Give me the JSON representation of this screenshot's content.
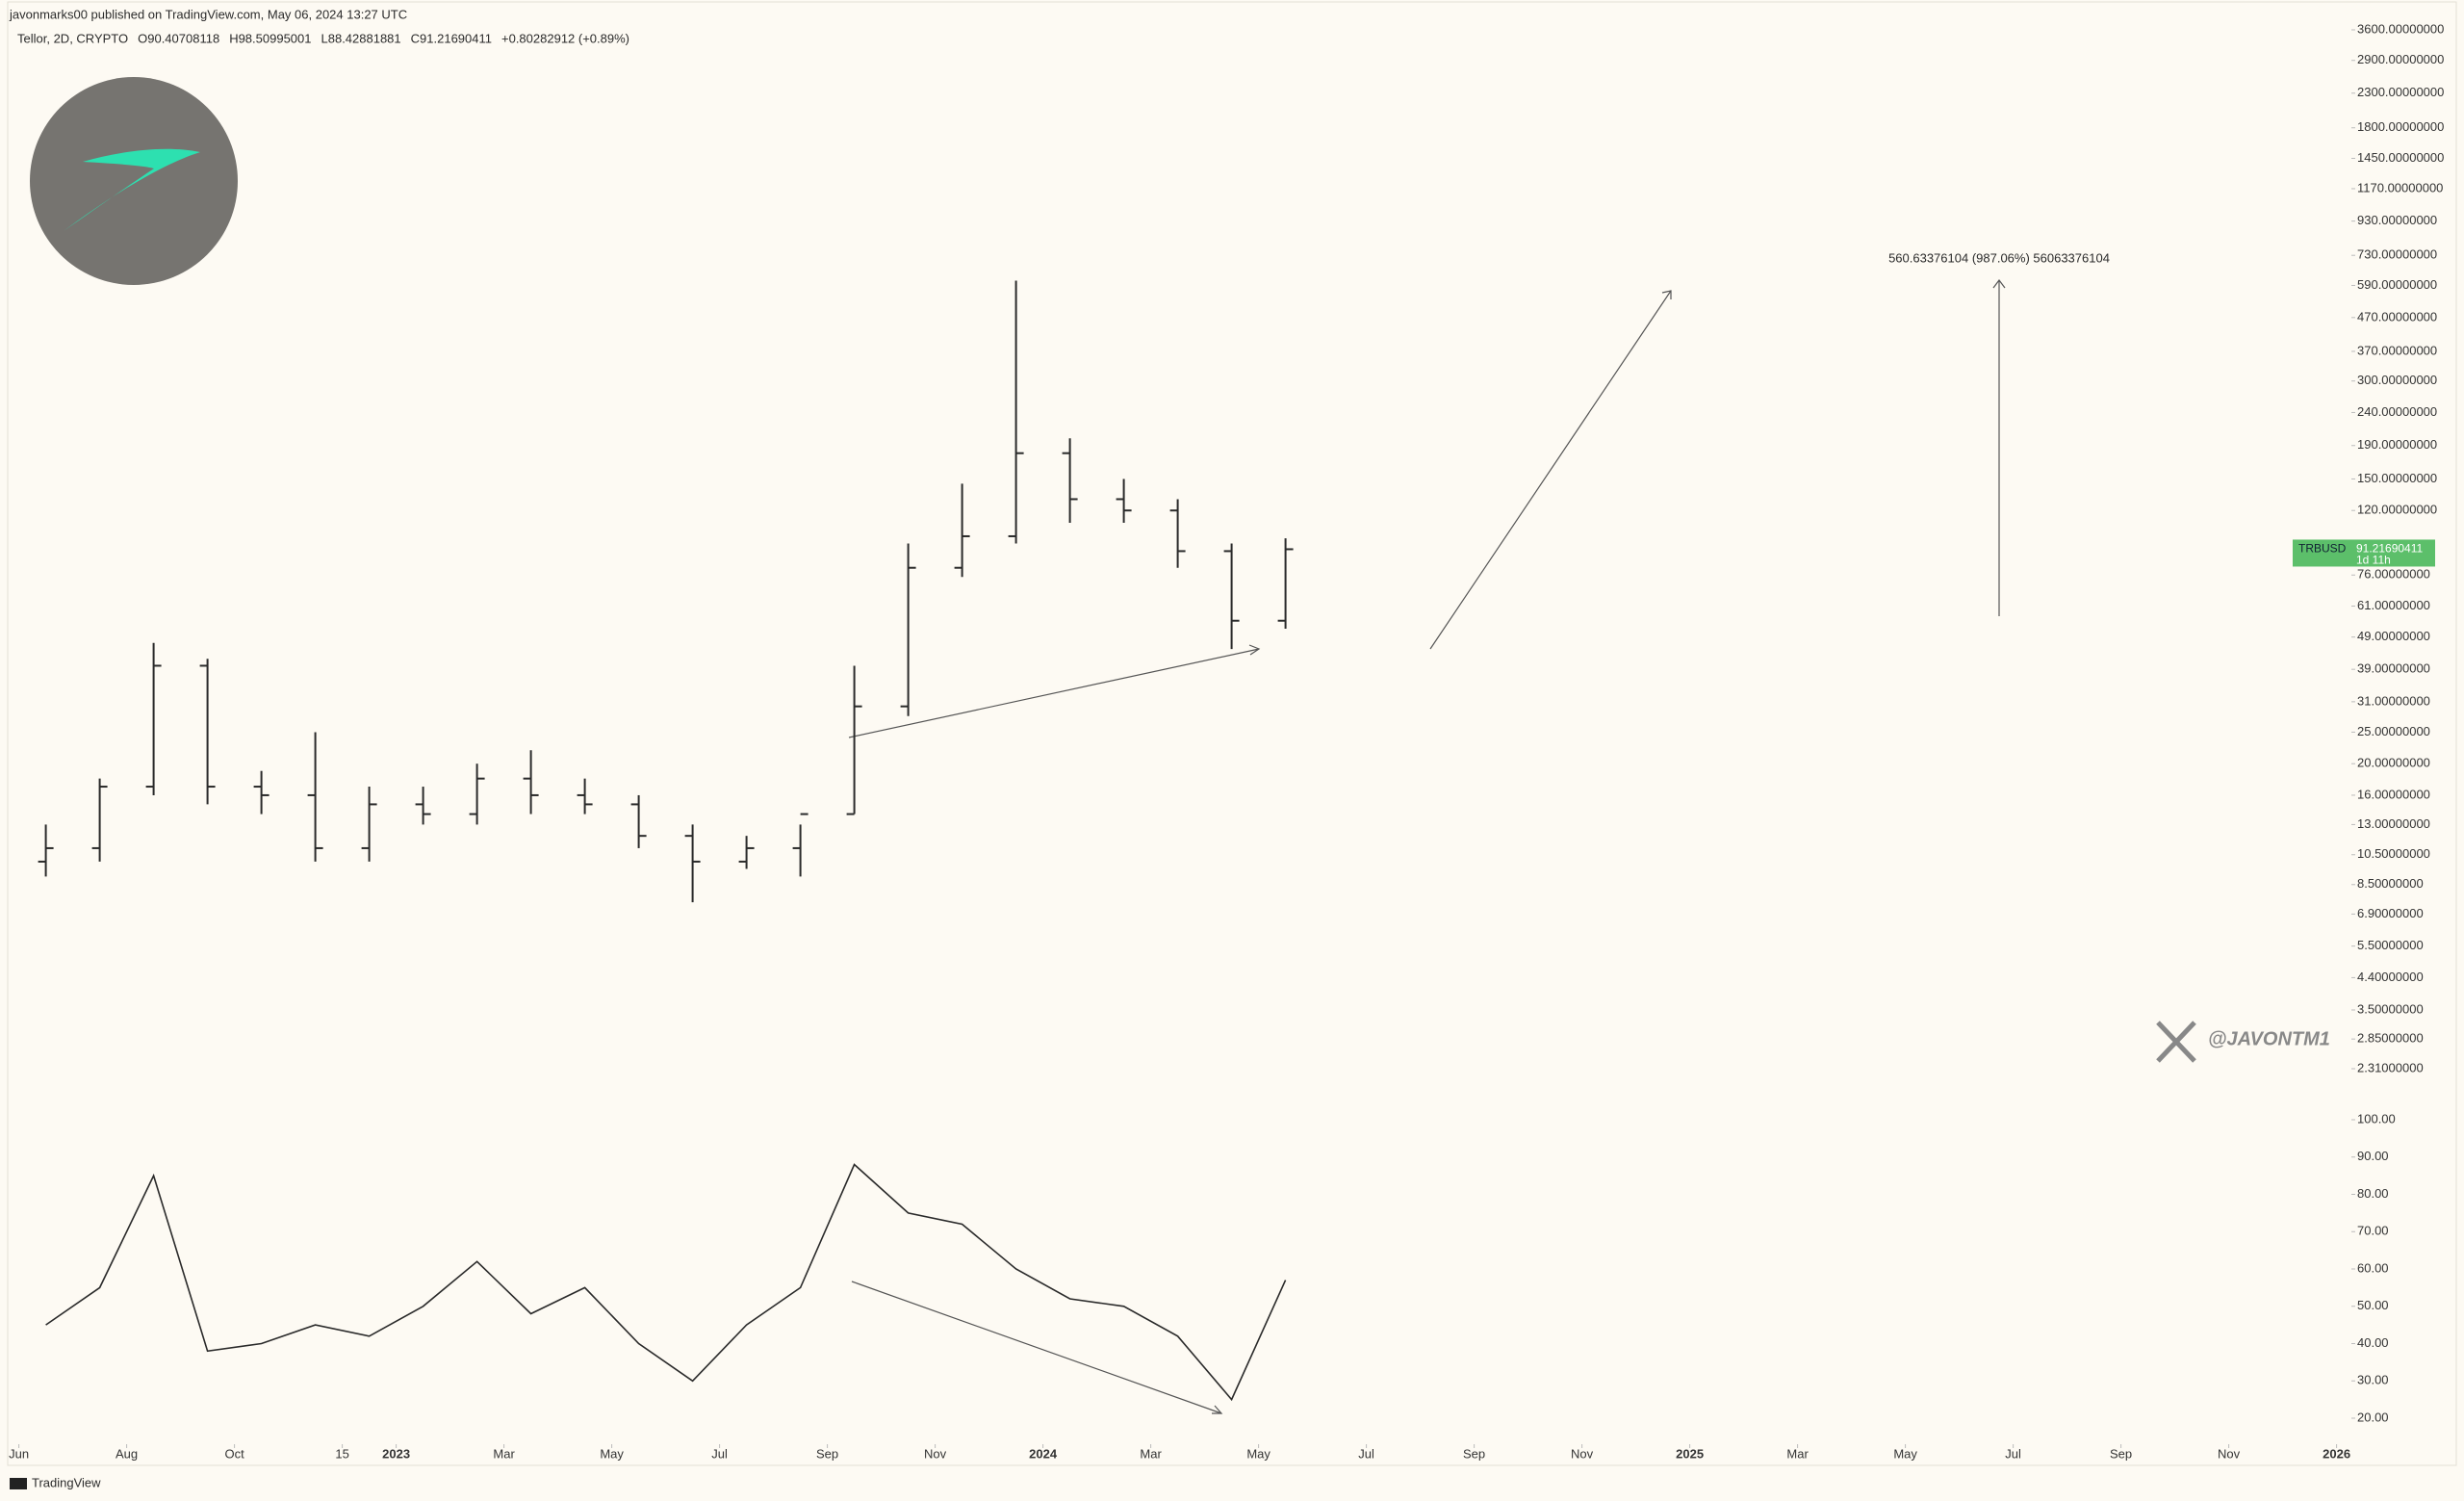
{
  "header": {
    "author_line": "javonmarks00 published on TradingView.com, May 06, 2024 13:27 UTC",
    "symbol_line": [
      "Tellor, 2D, CRYPTO",
      "O90.40708118",
      "H98.50995001",
      "L88.42881881",
      "C91.21690411",
      "+0.80282912 (+0.89%)"
    ]
  },
  "watermark": "@JAVONTM1",
  "brand": "TradingView",
  "chart_data": [
    {
      "type": "ohlc",
      "log": true,
      "color": "#2a2a2a",
      "x": [
        "2022-06",
        "2022-07",
        "2022-08",
        "2022-09",
        "2022-10",
        "2022-11",
        "2022-12",
        "2023-01",
        "2023-02",
        "2023-03",
        "2023-04",
        "2023-05",
        "2023-06",
        "2023-07",
        "2023-08",
        "2023-09",
        "2023-10",
        "2023-11",
        "2023-12",
        "2024-01",
        "2024-02",
        "2024-03",
        "2024-04",
        "2024-05"
      ],
      "open": [
        10,
        11,
        17,
        40,
        17,
        16,
        11,
        15,
        14,
        18,
        16,
        15,
        12,
        10,
        11,
        14,
        30,
        80,
        100,
        180,
        130,
        120,
        90,
        55
      ],
      "high": [
        13,
        18,
        47,
        42,
        19,
        25,
        17,
        17,
        20,
        22,
        18,
        16,
        13,
        12,
        13,
        40,
        95,
        145,
        610,
        200,
        150,
        130,
        95,
        98.5
      ],
      "low": [
        9,
        10,
        16,
        15,
        14,
        10,
        10,
        13,
        13,
        14,
        14,
        11,
        7.5,
        9.5,
        9,
        14,
        28,
        75,
        95,
        110,
        110,
        80,
        45,
        52
      ],
      "close": [
        11,
        17,
        40,
        17,
        16,
        11,
        15,
        14,
        18,
        16,
        15,
        12,
        10,
        11,
        14,
        30,
        80,
        100,
        180,
        130,
        120,
        90,
        55,
        91.22
      ],
      "ylim": [
        2.31,
        3600
      ],
      "yticks": [
        {
          "value": 3600,
          "label": "3600.00000000"
        },
        {
          "value": 2900,
          "label": "2900.00000000"
        },
        {
          "value": 2300,
          "label": "2300.00000000"
        },
        {
          "value": 1800,
          "label": "1800.00000000"
        },
        {
          "value": 1450,
          "label": "1450.00000000"
        },
        {
          "value": 1170,
          "label": "1170.00000000"
        },
        {
          "value": 930,
          "label": "930.00000000"
        },
        {
          "value": 730,
          "label": "730.00000000"
        },
        {
          "value": 590,
          "label": "590.00000000"
        },
        {
          "value": 470,
          "label": "470.00000000"
        },
        {
          "value": 370,
          "label": "370.00000000"
        },
        {
          "value": 300,
          "label": "300.00000000"
        },
        {
          "value": 240,
          "label": "240.00000000"
        },
        {
          "value": 190,
          "label": "190.00000000"
        },
        {
          "value": 150,
          "label": "150.00000000"
        },
        {
          "value": 120,
          "label": "120.00000000"
        },
        {
          "value": 76,
          "label": "76.00000000"
        },
        {
          "value": 61,
          "label": "61.00000000"
        },
        {
          "value": 49,
          "label": "49.00000000"
        },
        {
          "value": 39,
          "label": "39.00000000"
        },
        {
          "value": 31,
          "label": "31.00000000"
        },
        {
          "value": 25,
          "label": "25.00000000"
        },
        {
          "value": 20,
          "label": "20.00000000"
        },
        {
          "value": 16,
          "label": "16.00000000"
        },
        {
          "value": 13,
          "label": "13.00000000"
        },
        {
          "value": 10.5,
          "label": "10.50000000"
        },
        {
          "value": 8.5,
          "label": "8.50000000"
        },
        {
          "value": 6.9,
          "label": "6.90000000"
        },
        {
          "value": 5.5,
          "label": "5.50000000"
        },
        {
          "value": 4.4,
          "label": "4.40000000"
        },
        {
          "value": 3.5,
          "label": "3.50000000"
        },
        {
          "value": 2.85,
          "label": "2.85000000"
        },
        {
          "value": 2.31,
          "label": "2.31000000"
        }
      ],
      "last_price": 91.21690411,
      "symbol": "TRBUSD",
      "countdown": "1d 11h",
      "tag_color": "#5cbf6a",
      "annotations": [
        "560.63376104 (987.06%) 56063376104"
      ]
    },
    {
      "type": "line",
      "color": "#2a2a2a",
      "x": [
        "2022-06",
        "2022-07",
        "2022-08",
        "2022-09",
        "2022-10",
        "2022-11",
        "2022-12",
        "2023-01",
        "2023-02",
        "2023-03",
        "2023-04",
        "2023-05",
        "2023-06",
        "2023-07",
        "2023-08",
        "2023-09",
        "2023-10",
        "2023-11",
        "2023-12",
        "2024-01",
        "2024-02",
        "2024-03",
        "2024-04",
        "2024-05"
      ],
      "values": [
        45,
        55,
        85,
        38,
        40,
        45,
        42,
        50,
        62,
        48,
        55,
        40,
        30,
        45,
        55,
        88,
        75,
        72,
        60,
        52,
        50,
        42,
        25,
        57
      ],
      "ylim": [
        20,
        100
      ],
      "yticks": [
        {
          "value": 100,
          "label": "100.00"
        },
        {
          "value": 90,
          "label": "90.00"
        },
        {
          "value": 80,
          "label": "80.00"
        },
        {
          "value": 70,
          "label": "70.00"
        },
        {
          "value": 60,
          "label": "60.00"
        },
        {
          "value": 50,
          "label": "50.00"
        },
        {
          "value": 40,
          "label": "40.00"
        },
        {
          "value": 30,
          "label": "30.00"
        },
        {
          "value": 20,
          "label": "20.00"
        }
      ],
      "xticks": [
        {
          "value": "2022-06",
          "label": "Jun"
        },
        {
          "value": "2022-08",
          "label": "Aug"
        },
        {
          "value": "2022-10",
          "label": "Oct"
        },
        {
          "value": "2022-12",
          "label": "15"
        },
        {
          "value": "2023-01",
          "label": "2023"
        },
        {
          "value": "2023-03",
          "label": "Mar"
        },
        {
          "value": "2023-05",
          "label": "May"
        },
        {
          "value": "2023-07",
          "label": "Jul"
        },
        {
          "value": "2023-09",
          "label": "Sep"
        },
        {
          "value": "2023-11",
          "label": "Nov"
        },
        {
          "value": "2024-01",
          "label": "2024"
        },
        {
          "value": "2024-03",
          "label": "Mar"
        },
        {
          "value": "2024-05",
          "label": "May"
        },
        {
          "value": "2024-07",
          "label": "Jul"
        },
        {
          "value": "2024-09",
          "label": "Sep"
        },
        {
          "value": "2024-11",
          "label": "Nov"
        },
        {
          "value": "2025-01",
          "label": "2025"
        },
        {
          "value": "2025-03",
          "label": "Mar"
        },
        {
          "value": "2025-05",
          "label": "May"
        },
        {
          "value": "2025-07",
          "label": "Jul"
        },
        {
          "value": "2025-09",
          "label": "Sep"
        },
        {
          "value": "2025-11",
          "label": "Nov"
        },
        {
          "value": "2026-01",
          "label": "2026"
        }
      ]
    }
  ]
}
